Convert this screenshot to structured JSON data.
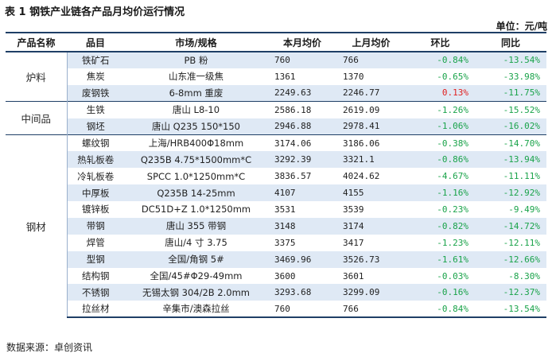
{
  "title": "表 1  钢铁产业链各产品月均价运行情况",
  "unit": "单位：元/吨",
  "source": "数据来源：卓创资讯",
  "colors": {
    "header_rule": "#1f3f66",
    "row_shade": "#dfe9f5",
    "negative": "#1aa34a",
    "positive": "#e02020"
  },
  "table": {
    "headers": [
      "产品名称",
      "品目",
      "市场/规格",
      "本月均价",
      "上月均价",
      "环比",
      "同比"
    ],
    "groups": [
      {
        "name": "炉料",
        "rows": [
          {
            "item": "铁矿石",
            "spec": "PB 粉",
            "cur": "760",
            "prev": "766",
            "mom": "-0.84%",
            "yoy": "-13.54%"
          },
          {
            "item": "焦炭",
            "spec": "山东准一级焦",
            "cur": "1361",
            "prev": "1370",
            "mom": "-0.65%",
            "yoy": "-33.98%"
          },
          {
            "item": "废钢铁",
            "spec": "6-8mm 重废",
            "cur": "2249.63",
            "prev": "2246.77",
            "mom": "0.13%",
            "yoy": "-11.75%"
          }
        ]
      },
      {
        "name": "中间品",
        "rows": [
          {
            "item": "生铁",
            "spec": "唐山 L8-10",
            "cur": "2586.18",
            "prev": "2619.09",
            "mom": "-1.26%",
            "yoy": "-15.52%"
          },
          {
            "item": "钢坯",
            "spec": "唐山 Q235   150*150",
            "cur": "2946.88",
            "prev": "2978.41",
            "mom": "-1.06%",
            "yoy": "-16.02%"
          }
        ]
      },
      {
        "name": "钢材",
        "rows": [
          {
            "item": "螺纹钢",
            "spec": "上海/HRB400Φ18mm",
            "cur": "3174.06",
            "prev": "3186.06",
            "mom": "-0.38%",
            "yoy": "-14.70%"
          },
          {
            "item": "热轧板卷",
            "spec": "Q235B 4.75*1500mm*C",
            "cur": "3292.39",
            "prev": "3321.1",
            "mom": "-0.86%",
            "yoy": "-13.94%"
          },
          {
            "item": "冷轧板卷",
            "spec": "SPCC 1.0*1250mm*C",
            "cur": "3836.57",
            "prev": "4024.62",
            "mom": "-4.67%",
            "yoy": "-11.11%"
          },
          {
            "item": "中厚板",
            "spec": "Q235B 14-25mm",
            "cur": "4107",
            "prev": "4155",
            "mom": "-1.16%",
            "yoy": "-12.92%"
          },
          {
            "item": "镀锌板",
            "spec": "DC51D+Z 1.0*1250mm",
            "cur": "3531",
            "prev": "3539",
            "mom": "-0.23%",
            "yoy": "-9.49%"
          },
          {
            "item": "带钢",
            "spec": "唐山 355 带钢",
            "cur": "3148",
            "prev": "3174",
            "mom": "-0.82%",
            "yoy": "-14.72%"
          },
          {
            "item": "焊管",
            "spec": "唐山/4 寸 3.75",
            "cur": "3375",
            "prev": "3417",
            "mom": "-1.23%",
            "yoy": "-12.11%"
          },
          {
            "item": "型钢",
            "spec": "全国/角钢 5#",
            "cur": "3469.96",
            "prev": "3526.73",
            "mom": "-1.61%",
            "yoy": "-12.66%"
          },
          {
            "item": "结构钢",
            "spec": "全国/45#Φ29-49mm",
            "cur": "3600",
            "prev": "3601",
            "mom": "-0.03%",
            "yoy": "-8.30%"
          },
          {
            "item": "不锈钢",
            "spec": "无锡太钢 304/2B 2.0mm",
            "cur": "3293.68",
            "prev": "3299.09",
            "mom": "-0.16%",
            "yoy": "-12.37%"
          },
          {
            "item": "拉丝材",
            "spec": "辛集市/澳森拉丝",
            "cur": "760",
            "prev": "766",
            "mom": "-0.84%",
            "yoy": "-13.54%"
          }
        ]
      }
    ]
  }
}
